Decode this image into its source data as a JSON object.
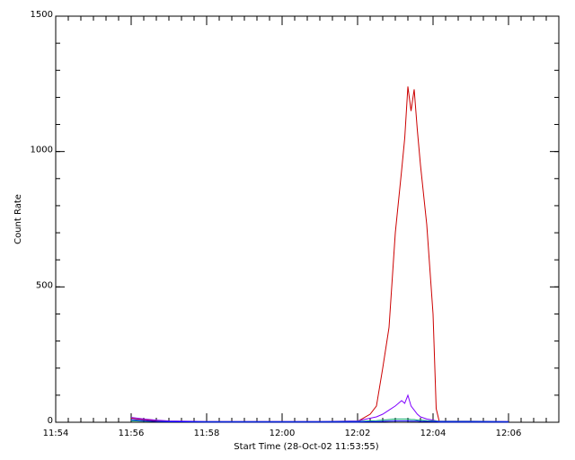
{
  "chart_data": {
    "type": "line",
    "xlabel": "Start Time (28-Oct-02 11:53:55)",
    "ylabel": "Count Rate",
    "x": [
      "11:56:00",
      "11:56:20",
      "11:56:40",
      "11:57:00",
      "11:58:00",
      "11:59:00",
      "12:00:00",
      "12:01:00",
      "12:02:00",
      "12:02:20",
      "12:02:30",
      "12:02:40",
      "12:02:50",
      "12:03:00",
      "12:03:10",
      "12:03:15",
      "12:03:20",
      "12:03:25",
      "12:03:30",
      "12:03:35",
      "12:03:40",
      "12:03:50",
      "12:04:00",
      "12:04:05",
      "12:04:10",
      "12:05:00",
      "12:06:00"
    ],
    "series": [
      {
        "color": "#cc0000",
        "values": [
          15,
          10,
          5,
          3,
          2,
          2,
          2,
          2,
          3,
          30,
          60,
          200,
          350,
          700,
          930,
          1050,
          1240,
          1150,
          1230,
          1080,
          950,
          730,
          400,
          50,
          2,
          2,
          2
        ]
      },
      {
        "color": "#7f00ff",
        "values": [
          18,
          12,
          8,
          5,
          3,
          3,
          3,
          3,
          5,
          15,
          20,
          30,
          45,
          60,
          80,
          70,
          100,
          60,
          45,
          30,
          20,
          12,
          8,
          5,
          4,
          4,
          3
        ]
      },
      {
        "color": "#00a070",
        "values": [
          5,
          4,
          3,
          2,
          2,
          2,
          2,
          2,
          3,
          5,
          6,
          8,
          10,
          12,
          12,
          12,
          12,
          10,
          10,
          8,
          8,
          6,
          5,
          4,
          3,
          3,
          2
        ]
      },
      {
        "color": "#0000ff",
        "values": [
          10,
          6,
          3,
          2,
          1,
          1,
          1,
          1,
          1,
          2,
          2,
          3,
          4,
          5,
          5,
          5,
          5,
          4,
          4,
          4,
          3,
          3,
          2,
          2,
          1,
          1,
          1
        ]
      }
    ],
    "xlim": [
      "11:54:00",
      "12:07:20"
    ],
    "xticks": [
      "11:54",
      "11:56",
      "11:58",
      "12:00",
      "12:02",
      "12:04",
      "12:06"
    ],
    "ylim": [
      0,
      1500
    ],
    "yticks": [
      0,
      500,
      1000,
      1500
    ]
  }
}
